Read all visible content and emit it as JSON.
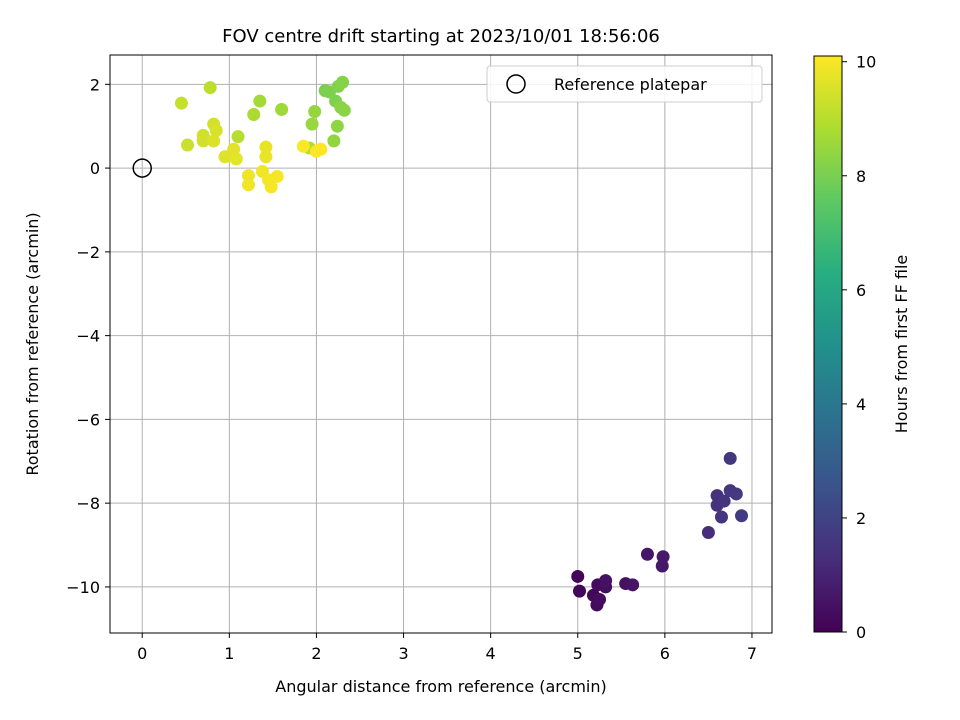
{
  "chart_data": {
    "type": "scatter",
    "title": "FOV centre drift starting at 2023/10/01 18:56:06",
    "xlabel": "Angular distance from reference (arcmin)",
    "ylabel": "Rotation from reference (arcmin)",
    "xlim": [
      -0.37,
      7.23
    ],
    "ylim": [
      -11.1,
      2.7
    ],
    "xticks": [
      0,
      1,
      2,
      3,
      4,
      5,
      6,
      7
    ],
    "xtick_labels": [
      "0",
      "1",
      "2",
      "3",
      "4",
      "5",
      "6",
      "7"
    ],
    "yticks": [
      2,
      0,
      -2,
      -4,
      -6,
      -8,
      -10
    ],
    "ytick_labels": [
      "2",
      "0",
      "−2",
      "−4",
      "−6",
      "−8",
      "−10"
    ],
    "grid": true,
    "legend": {
      "location": "upper-right",
      "entries": [
        {
          "label": "Reference platepar",
          "marker": "open-circle"
        }
      ]
    },
    "reference_point": {
      "x": 0,
      "y": 0
    },
    "colorbar": {
      "label": "Hours from first FF file",
      "colormap": "viridis",
      "range": [
        0,
        10.1
      ],
      "ticks": [
        0,
        2,
        4,
        6,
        8,
        10
      ],
      "tick_labels": [
        "0",
        "2",
        "4",
        "6",
        "8",
        "10"
      ]
    },
    "points": [
      {
        "x": 5.0,
        "y": -9.75,
        "c": 0.1
      },
      {
        "x": 5.02,
        "y": -10.1,
        "c": 0.15
      },
      {
        "x": 5.18,
        "y": -10.2,
        "c": 0.2
      },
      {
        "x": 5.22,
        "y": -10.43,
        "c": 0.25
      },
      {
        "x": 5.23,
        "y": -9.95,
        "c": 0.3
      },
      {
        "x": 5.25,
        "y": -10.3,
        "c": 0.35
      },
      {
        "x": 5.32,
        "y": -10.0,
        "c": 0.4
      },
      {
        "x": 5.32,
        "y": -9.85,
        "c": 0.45
      },
      {
        "x": 5.55,
        "y": -9.92,
        "c": 0.5
      },
      {
        "x": 5.63,
        "y": -9.95,
        "c": 0.55
      },
      {
        "x": 5.8,
        "y": -9.22,
        "c": 0.6
      },
      {
        "x": 5.97,
        "y": -9.5,
        "c": 0.65
      },
      {
        "x": 5.98,
        "y": -9.28,
        "c": 0.7
      },
      {
        "x": 6.5,
        "y": -8.7,
        "c": 1.3
      },
      {
        "x": 6.6,
        "y": -7.82,
        "c": 1.4
      },
      {
        "x": 6.6,
        "y": -8.05,
        "c": 1.45
      },
      {
        "x": 6.65,
        "y": -8.33,
        "c": 1.5
      },
      {
        "x": 6.68,
        "y": -7.95,
        "c": 1.55
      },
      {
        "x": 6.75,
        "y": -7.7,
        "c": 1.6
      },
      {
        "x": 6.75,
        "y": -6.93,
        "c": 1.65
      },
      {
        "x": 6.82,
        "y": -7.78,
        "c": 1.7
      },
      {
        "x": 6.88,
        "y": -8.3,
        "c": 1.75
      },
      {
        "x": 2.1,
        "y": 1.85,
        "c": 8.0
      },
      {
        "x": 2.15,
        "y": 1.82,
        "c": 8.05
      },
      {
        "x": 2.22,
        "y": 1.6,
        "c": 8.1
      },
      {
        "x": 2.25,
        "y": 1.95,
        "c": 8.15
      },
      {
        "x": 2.3,
        "y": 2.05,
        "c": 8.2
      },
      {
        "x": 2.28,
        "y": 1.45,
        "c": 8.25
      },
      {
        "x": 2.32,
        "y": 1.38,
        "c": 8.3
      },
      {
        "x": 2.24,
        "y": 1.0,
        "c": 8.35
      },
      {
        "x": 2.2,
        "y": 0.65,
        "c": 8.4
      },
      {
        "x": 1.98,
        "y": 1.35,
        "c": 8.45
      },
      {
        "x": 1.95,
        "y": 1.05,
        "c": 8.5
      },
      {
        "x": 1.6,
        "y": 1.4,
        "c": 8.6
      },
      {
        "x": 1.35,
        "y": 1.6,
        "c": 8.7
      },
      {
        "x": 1.28,
        "y": 1.28,
        "c": 8.8
      },
      {
        "x": 1.92,
        "y": 0.48,
        "c": 8.9
      },
      {
        "x": 1.1,
        "y": 0.75,
        "c": 9.0
      },
      {
        "x": 0.78,
        "y": 1.92,
        "c": 9.1
      },
      {
        "x": 0.45,
        "y": 1.55,
        "c": 9.2
      },
      {
        "x": 0.52,
        "y": 0.55,
        "c": 9.3
      },
      {
        "x": 0.7,
        "y": 0.78,
        "c": 9.35
      },
      {
        "x": 0.7,
        "y": 0.65,
        "c": 9.4
      },
      {
        "x": 0.82,
        "y": 1.05,
        "c": 9.45
      },
      {
        "x": 0.85,
        "y": 0.9,
        "c": 9.5
      },
      {
        "x": 0.82,
        "y": 0.65,
        "c": 9.55
      },
      {
        "x": 0.95,
        "y": 0.27,
        "c": 9.6
      },
      {
        "x": 1.05,
        "y": 0.45,
        "c": 9.65
      },
      {
        "x": 1.08,
        "y": 0.22,
        "c": 9.7
      },
      {
        "x": 1.42,
        "y": 0.5,
        "c": 9.75
      },
      {
        "x": 1.42,
        "y": 0.27,
        "c": 9.8
      },
      {
        "x": 1.22,
        "y": -0.18,
        "c": 9.85
      },
      {
        "x": 1.22,
        "y": -0.4,
        "c": 9.9
      },
      {
        "x": 1.38,
        "y": -0.08,
        "c": 9.9
      },
      {
        "x": 1.45,
        "y": -0.28,
        "c": 9.95
      },
      {
        "x": 1.48,
        "y": -0.45,
        "c": 10.0
      },
      {
        "x": 1.55,
        "y": -0.2,
        "c": 10.0
      },
      {
        "x": 1.85,
        "y": 0.52,
        "c": 10.05
      },
      {
        "x": 2.0,
        "y": 0.4,
        "c": 10.05
      },
      {
        "x": 2.05,
        "y": 0.45,
        "c": 10.1
      }
    ]
  }
}
